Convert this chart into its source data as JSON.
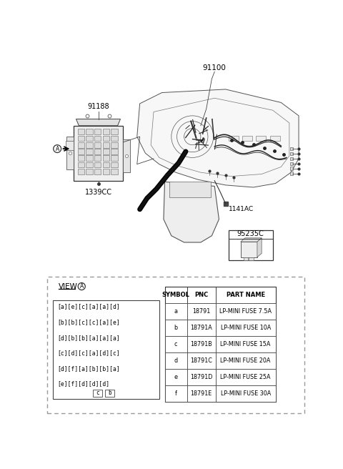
{
  "bg_color": "#ffffff",
  "part_91100": "91100",
  "part_91188": "91188",
  "part_1339CC": "1339CC",
  "part_1141AC": "1141AC",
  "part_95235C": "95235C",
  "view_label": "VIEW",
  "fuse_grid_rows": [
    "[a][e][c][a][a][d]",
    "[b][b][c][c][a][e]",
    "[d][b][b][a][a][a]",
    "[c][d][c][a][d][c]",
    "[d][f][a][b][b][a]",
    "[e][f][d][d][d]"
  ],
  "bottom_labels": [
    "c",
    "b"
  ],
  "table_headers": [
    "SYMBOL",
    "PNC",
    "PART NAME"
  ],
  "table_rows": [
    [
      "a",
      "18791",
      "LP-MINI FUSE 7.5A"
    ],
    [
      "b",
      "18791A",
      "LP-MINI FUSE 10A"
    ],
    [
      "c",
      "18791B",
      "LP-MINI FUSE 15A"
    ],
    [
      "d",
      "18791C",
      "LP-MINI FUSE 20A"
    ],
    [
      "e",
      "18791D",
      "LP-MINI FUSE 25A"
    ],
    [
      "f",
      "18791E",
      "LP-MINI FUSE 30A"
    ]
  ]
}
